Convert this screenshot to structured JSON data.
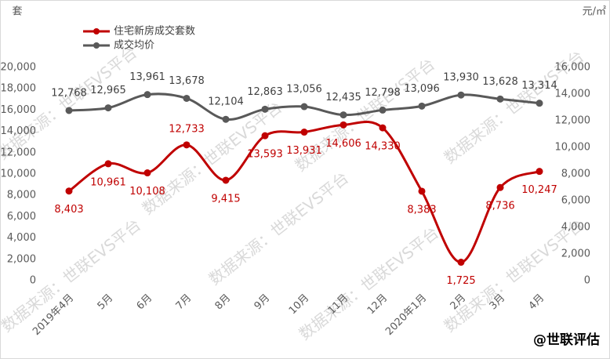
{
  "chart_data": {
    "type": "line",
    "y_unit": "套",
    "y2_unit": "元/㎡",
    "watermark": "数据来源：世联EVS平台",
    "source": "@世联评估",
    "categories": [
      "2019年4月",
      "5月",
      "6月",
      "7月",
      "8月",
      "9月",
      "10月",
      "11月",
      "12月",
      "2020年1月",
      "2月",
      "3月",
      "4月"
    ],
    "series": [
      {
        "name": "住宅新房成交套数",
        "color": "#c00000",
        "values": [
          8403,
          10961,
          10108,
          12733,
          9415,
          13593,
          13931,
          14606,
          14330,
          8383,
          1725,
          8736,
          10247
        ],
        "value_labels": [
          "8,403",
          "10,961",
          "10,108",
          "12,733",
          "9,415",
          "13,593",
          "13,931",
          "14,606",
          "14,330",
          "8,383",
          "1,725",
          "8,736",
          "10,247"
        ]
      },
      {
        "name": "成交均价",
        "color": "#595959",
        "axis": "y2",
        "values": [
          12768,
          12965,
          13961,
          13678,
          12104,
          12863,
          13056,
          12435,
          12798,
          13096,
          13930,
          13628,
          13314
        ],
        "value_labels": [
          "12,768",
          "12,965",
          "13,961",
          "13,678",
          "12,104",
          "12,863",
          "13,056",
          "12,435",
          "12,798",
          "13,096",
          "13,930",
          "13,628",
          "13,314"
        ]
      }
    ],
    "ylim": [
      0,
      20000
    ],
    "yticks": [
      0,
      {
        "value": 2000,
        "label": "2,000"
      },
      {
        "value": 4000,
        "label": "4,000"
      },
      {
        "value": 6000,
        "label": "6,000"
      },
      {
        "value": 8000,
        "label": "8,000"
      },
      {
        "value": 10000,
        "label": "10,000"
      },
      {
        "value": 12000,
        "label": "12,000"
      },
      {
        "value": 14000,
        "label": "14,000"
      },
      {
        "value": 16000,
        "label": "16,000"
      },
      {
        "value": 18000,
        "label": "18,000"
      },
      {
        "value": 20000,
        "label": "20,000"
      }
    ],
    "y2lim": [
      0,
      16000
    ],
    "y2ticks": [
      0,
      {
        "value": 2000,
        "label": "2,000"
      },
      {
        "value": 4000,
        "label": "4,000"
      },
      {
        "value": 6000,
        "label": "6,000"
      },
      {
        "value": 8000,
        "label": "8,000"
      },
      {
        "value": 10000,
        "label": "10,000"
      },
      {
        "value": 12000,
        "label": "12,000"
      },
      {
        "value": 14000,
        "label": "14,000"
      },
      {
        "value": 16000,
        "label": "16,000"
      }
    ],
    "grid": false
  }
}
